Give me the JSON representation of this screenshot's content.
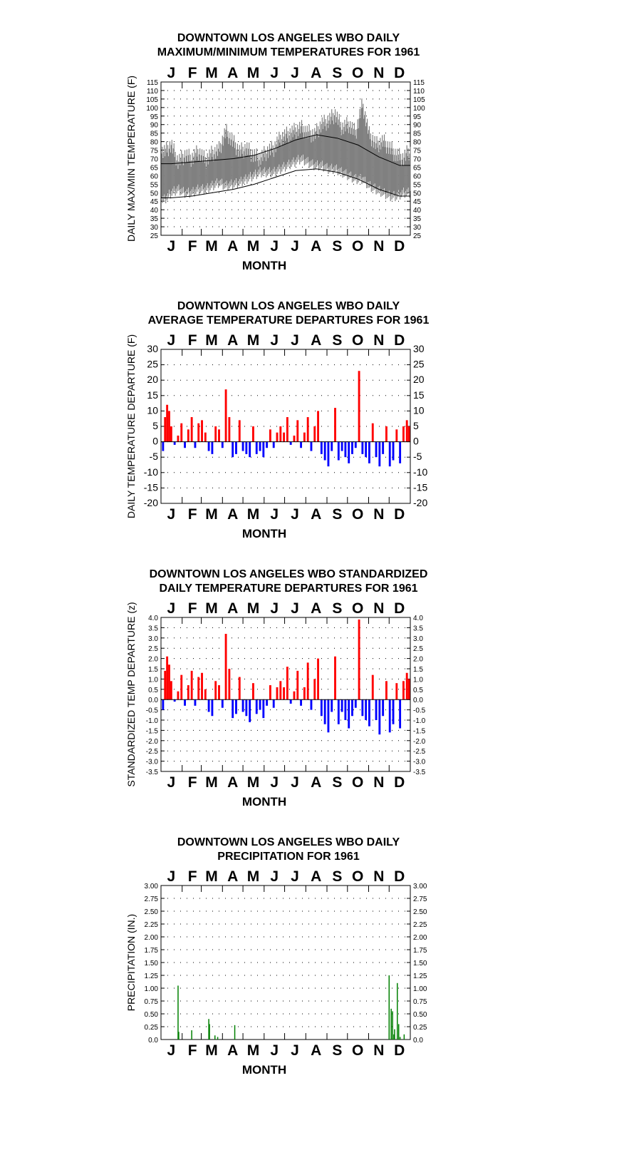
{
  "months": [
    "J",
    "F",
    "M",
    "A",
    "M",
    "J",
    "J",
    "A",
    "S",
    "O",
    "N",
    "D"
  ],
  "charts": [
    {
      "id": "maxmin",
      "title_line1": "DOWNTOWN LOS ANGELES WBO DAILY",
      "title_line2": "MAXIMUM/MINIMUM TEMPERATURES FOR 1961",
      "xlabel": "MONTH",
      "ylabel": "DAILY MAX/MIN TEMPERATURE (F)",
      "tick_labels": [
        "25",
        "30",
        "35",
        "40",
        "45",
        "50",
        "55",
        "60",
        "65",
        "70",
        "75",
        "80",
        "85",
        "90",
        "95",
        "100",
        "105",
        "110",
        "115"
      ]
    },
    {
      "id": "departure",
      "title_line1": "DOWNTOWN LOS ANGELES WBO DAILY",
      "title_line2": "AVERAGE TEMPERATURE DEPARTURES FOR 1961",
      "xlabel": "MONTH",
      "ylabel": "DAILY TEMPERATURE DEPARTURE (F)",
      "tick_labels": [
        "-20",
        "-15",
        "-10",
        "-5",
        "0",
        "5",
        "10",
        "15",
        "20",
        "25",
        "30"
      ]
    },
    {
      "id": "standardized",
      "title_line1": "DOWNTOWN LOS ANGELES WBO STANDARDIZED",
      "title_line2": "DAILY TEMPERATURE DEPARTURES FOR 1961",
      "xlabel": "MONTH",
      "ylabel": "STANDARDIZED TEMP DEPARTURE (z)",
      "tick_labels": [
        "-3.5",
        "-3.0",
        "-2.5",
        "-2.0",
        "-1.5",
        "-1.0",
        "-0.5",
        "0.0",
        "0.5",
        "1.0",
        "1.5",
        "2.0",
        "2.5",
        "3.0",
        "3.5",
        "4.0"
      ]
    },
    {
      "id": "precip",
      "title_line1": "DOWNTOWN LOS ANGELES WBO DAILY",
      "title_line2": "PRECIPITATION FOR 1961",
      "xlabel": "MONTH",
      "ylabel": "PRECIPITATION (IN.)",
      "tick_labels": [
        "0.0",
        "0.25",
        "0.50",
        "0.75",
        "1.00",
        "1.25",
        "1.50",
        "1.75",
        "2.00",
        "2.25",
        "2.50",
        "2.75",
        "3.00"
      ]
    }
  ],
  "chart_data": [
    {
      "type": "line",
      "title": "DOWNTOWN LOS ANGELES WBO DAILY MAXIMUM/MINIMUM TEMPERATURES FOR 1961",
      "xlabel": "MONTH",
      "ylabel": "DAILY MAX/MIN TEMPERATURE (F)",
      "ylim": [
        25,
        115
      ],
      "yticks_step": 5,
      "grid": true,
      "x_categories": [
        "J",
        "F",
        "M",
        "A",
        "M",
        "J",
        "J",
        "A",
        "S",
        "O",
        "N",
        "D"
      ],
      "series": [
        {
          "name": "",
          "role": "normal_max",
          "x_month_mid": [
            1,
            2,
            3,
            4,
            5,
            6,
            7,
            8,
            9,
            10,
            11,
            12
          ],
          "values": [
            67,
            68,
            69,
            70,
            72,
            76,
            81,
            84,
            82,
            78,
            71,
            66
          ],
          "color": "#000000"
        },
        {
          "name": "",
          "role": "normal_min",
          "x_month_mid": [
            1,
            2,
            3,
            4,
            5,
            6,
            7,
            8,
            9,
            10,
            11,
            12
          ],
          "values": [
            47,
            48,
            50,
            52,
            55,
            59,
            63,
            64,
            62,
            58,
            52,
            48
          ],
          "color": "#000000"
        },
        {
          "name": "",
          "role": "observed_daily_range",
          "x_day": [
            5,
            15,
            25,
            35,
            45,
            55,
            65,
            75,
            85,
            95,
            105,
            115,
            125,
            135,
            145,
            155,
            165,
            175,
            185,
            195,
            205,
            215,
            225,
            235,
            245,
            255,
            265,
            275,
            285,
            295,
            305,
            315,
            325,
            335,
            345,
            355,
            362
          ],
          "high": [
            74,
            78,
            68,
            72,
            70,
            74,
            69,
            73,
            75,
            86,
            80,
            74,
            76,
            72,
            70,
            74,
            76,
            82,
            84,
            86,
            88,
            85,
            84,
            90,
            92,
            96,
            88,
            90,
            85,
            102,
            84,
            78,
            80,
            76,
            72,
            70,
            74
          ],
          "low": [
            46,
            50,
            52,
            50,
            50,
            52,
            52,
            54,
            56,
            54,
            55,
            56,
            58,
            60,
            62,
            62,
            62,
            64,
            66,
            68,
            70,
            68,
            66,
            66,
            64,
            64,
            62,
            60,
            58,
            58,
            54,
            52,
            50,
            48,
            48,
            50,
            50
          ],
          "color": "#808080"
        }
      ]
    },
    {
      "type": "bar",
      "title": "DOWNTOWN LOS ANGELES WBO DAILY AVERAGE TEMPERATURE DEPARTURES FOR 1961",
      "xlabel": "MONTH",
      "ylabel": "DAILY TEMPERATURE DEPARTURE (F)",
      "ylim": [
        -20,
        30
      ],
      "yticks_step": 5,
      "grid": true,
      "x_categories": [
        "J",
        "F",
        "M",
        "A",
        "M",
        "J",
        "J",
        "A",
        "S",
        "O",
        "N",
        "D"
      ],
      "positive_color": "#ff0000",
      "negative_color": "#0000ff",
      "x_day": [
        3,
        6,
        9,
        12,
        15,
        20,
        25,
        30,
        35,
        40,
        45,
        50,
        55,
        60,
        65,
        70,
        75,
        80,
        85,
        90,
        95,
        100,
        105,
        110,
        115,
        120,
        125,
        130,
        135,
        140,
        145,
        150,
        155,
        160,
        165,
        170,
        175,
        180,
        185,
        190,
        195,
        200,
        205,
        210,
        215,
        220,
        225,
        230,
        235,
        240,
        245,
        250,
        255,
        260,
        265,
        270,
        275,
        280,
        285,
        290,
        295,
        300,
        305,
        310,
        315,
        320,
        325,
        330,
        335,
        340,
        345,
        350,
        355,
        360,
        363
      ],
      "values": [
        -3,
        8,
        12,
        10,
        5,
        -1,
        2,
        6,
        -2,
        4,
        8,
        -2,
        6,
        7,
        3,
        -3,
        -4,
        5,
        4,
        -2,
        17,
        8,
        -5,
        -4,
        7,
        -3,
        -4,
        -5,
        5,
        -4,
        -3,
        -5,
        -2,
        4,
        -2,
        3,
        5,
        3,
        8,
        -1,
        2,
        7,
        -2,
        3,
        8,
        -3,
        5,
        10,
        -4,
        -6,
        -8,
        -3,
        11,
        -6,
        -3,
        -5,
        -7,
        -4,
        -2,
        23,
        -4,
        -5,
        -7,
        6,
        -5,
        -8,
        -4,
        5,
        -8,
        -6,
        4,
        -7,
        5,
        7,
        5
      ]
    },
    {
      "type": "bar",
      "title": "DOWNTOWN LOS ANGELES WBO STANDARDIZED DAILY TEMPERATURE DEPARTURES FOR 1961",
      "xlabel": "MONTH",
      "ylabel": "STANDARDIZED TEMP DEPARTURE (z)",
      "ylim": [
        -3.5,
        4.0
      ],
      "yticks_step": 0.5,
      "grid": true,
      "x_categories": [
        "J",
        "F",
        "M",
        "A",
        "M",
        "J",
        "J",
        "A",
        "S",
        "O",
        "N",
        "D"
      ],
      "positive_color": "#ff0000",
      "negative_color": "#0000ff",
      "x_day": [
        3,
        6,
        9,
        12,
        15,
        20,
        25,
        30,
        35,
        40,
        45,
        50,
        55,
        60,
        65,
        70,
        75,
        80,
        85,
        90,
        95,
        100,
        105,
        110,
        115,
        120,
        125,
        130,
        135,
        140,
        145,
        150,
        155,
        160,
        165,
        170,
        175,
        180,
        185,
        190,
        195,
        200,
        205,
        210,
        215,
        220,
        225,
        230,
        235,
        240,
        245,
        250,
        255,
        260,
        265,
        270,
        275,
        280,
        285,
        290,
        295,
        300,
        305,
        310,
        315,
        320,
        325,
        330,
        335,
        340,
        345,
        350,
        355,
        360,
        363
      ],
      "values": [
        -0.5,
        1.4,
        2.1,
        1.7,
        0.9,
        -0.1,
        0.4,
        1.2,
        -0.3,
        0.7,
        1.4,
        -0.3,
        1.1,
        1.3,
        0.5,
        -0.6,
        -0.8,
        0.9,
        0.7,
        -0.4,
        3.2,
        1.5,
        -0.9,
        -0.7,
        1.1,
        -0.6,
        -0.8,
        -1.1,
        0.8,
        -0.7,
        -0.5,
        -0.9,
        -0.3,
        0.7,
        -0.4,
        0.6,
        0.9,
        0.6,
        1.6,
        -0.2,
        0.4,
        1.4,
        -0.3,
        0.6,
        1.8,
        -0.5,
        1.0,
        2.0,
        -0.8,
        -1.2,
        -1.6,
        -0.6,
        2.1,
        -1.2,
        -0.6,
        -1.0,
        -1.4,
        -0.8,
        -0.4,
        3.9,
        -0.8,
        -1.0,
        -1.3,
        1.2,
        -1.0,
        -1.7,
        -0.8,
        0.9,
        -1.6,
        -1.2,
        0.8,
        -1.4,
        0.9,
        1.3,
        1.0
      ]
    },
    {
      "type": "bar",
      "title": "DOWNTOWN LOS ANGELES WBO DAILY PRECIPITATION FOR 1961",
      "xlabel": "MONTH",
      "ylabel": "PRECIPITATION (IN.)",
      "ylim": [
        0,
        3.0
      ],
      "yticks_step": 0.25,
      "grid": true,
      "x_categories": [
        "J",
        "F",
        "M",
        "A",
        "M",
        "J",
        "J",
        "A",
        "S",
        "O",
        "N",
        "D"
      ],
      "color": "#008000",
      "x_day": [
        25,
        26,
        45,
        70,
        71,
        79,
        83,
        108,
        334,
        337,
        339,
        341,
        342,
        346,
        348,
        350,
        356
      ],
      "values": [
        1.05,
        0.15,
        0.18,
        0.4,
        0.3,
        0.08,
        0.05,
        0.28,
        1.25,
        0.6,
        0.55,
        0.1,
        0.2,
        1.1,
        0.3,
        0.05,
        0.1
      ]
    }
  ]
}
